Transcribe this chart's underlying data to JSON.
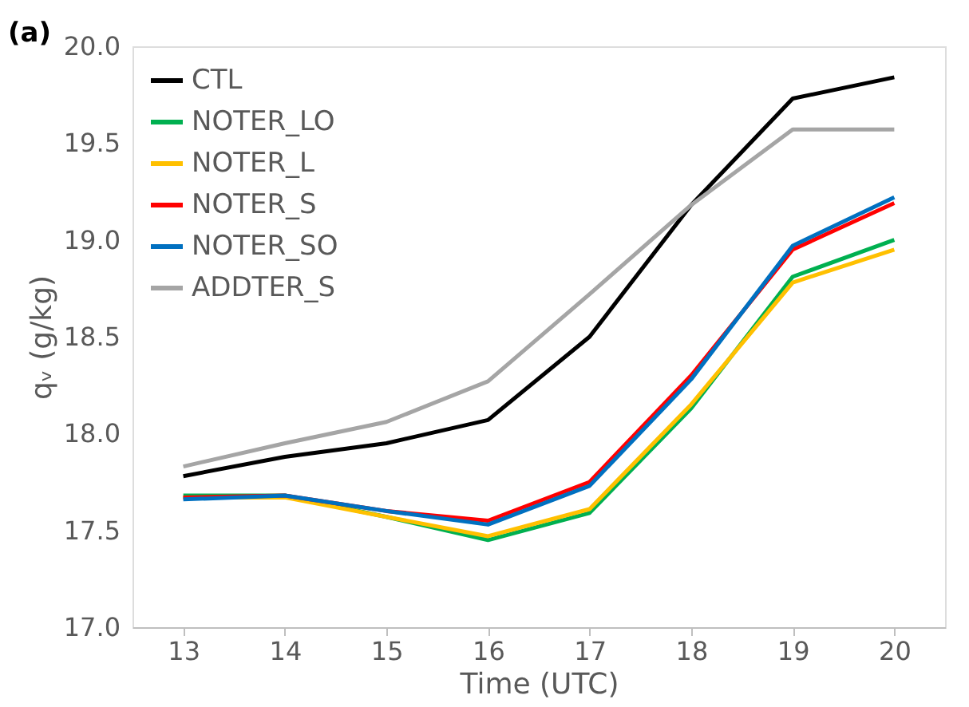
{
  "chart_data": {
    "type": "line",
    "categories": [
      "13",
      "14",
      "15",
      "16",
      "17",
      "18",
      "19",
      "20"
    ],
    "series": [
      {
        "name": "CTL",
        "color": "#000000",
        "values": [
          17.78,
          17.88,
          17.95,
          18.07,
          18.5,
          19.18,
          19.73,
          19.84
        ]
      },
      {
        "name": "NOTER_LO",
        "color": "#00b050",
        "values": [
          17.68,
          17.68,
          17.57,
          17.45,
          17.59,
          18.13,
          18.81,
          19.0
        ]
      },
      {
        "name": "NOTER_L",
        "color": "#ffc000",
        "values": [
          17.67,
          17.67,
          17.57,
          17.47,
          17.61,
          18.15,
          18.78,
          18.95
        ]
      },
      {
        "name": "NOTER_S",
        "color": "#ff0000",
        "values": [
          17.67,
          17.68,
          17.6,
          17.55,
          17.75,
          18.3,
          18.95,
          19.19
        ]
      },
      {
        "name": "NOTER_SO",
        "color": "#0070c0",
        "values": [
          17.66,
          17.68,
          17.6,
          17.53,
          17.73,
          18.28,
          18.97,
          19.22
        ]
      },
      {
        "name": "ADDTER_S",
        "color": "#a5a5a5",
        "values": [
          17.83,
          17.95,
          18.06,
          18.27,
          18.72,
          19.18,
          19.57,
          19.57
        ]
      }
    ],
    "xlabel": "Time (UTC)",
    "ylabel": "qᵥ (g/kg)",
    "ylim": [
      17.0,
      20.0
    ],
    "yticks": [
      {
        "value": 17.0,
        "label": "17.0"
      },
      {
        "value": 17.5,
        "label": "17.5"
      },
      {
        "value": 18.0,
        "label": "18.0"
      },
      {
        "value": 18.5,
        "label": "18.5"
      },
      {
        "value": 19.0,
        "label": "19.0"
      },
      {
        "value": 19.5,
        "label": "19.5"
      },
      {
        "value": 20.0,
        "label": "20.0"
      }
    ],
    "grid": false,
    "legend": "top left",
    "marker": "none",
    "line_style": "solid",
    "annotations": [
      "(a)"
    ]
  }
}
